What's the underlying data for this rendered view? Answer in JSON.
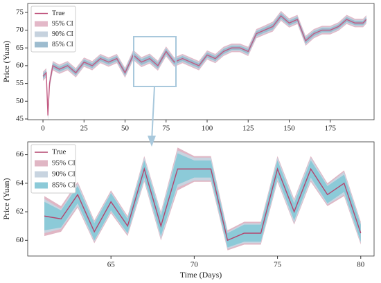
{
  "chart_data": [
    {
      "type": "band-line",
      "ylabel": "Price (Yuan)",
      "x": [
        0,
        2,
        3,
        4,
        6,
        10,
        15,
        20,
        25,
        30,
        35,
        40,
        45,
        50,
        55,
        60,
        65,
        70,
        75,
        80,
        85,
        90,
        95,
        100,
        105,
        110,
        115,
        120,
        125,
        130,
        135,
        140,
        145,
        150,
        155,
        160,
        165,
        170,
        175,
        180,
        185,
        190,
        195,
        197
      ],
      "series": [
        {
          "name": "True",
          "color": "#c25a82",
          "values": [
            57,
            58,
            46,
            55,
            60,
            59,
            60,
            58,
            61,
            60,
            62,
            61,
            62,
            58,
            63,
            61,
            62,
            60,
            64,
            61,
            62,
            61,
            60,
            63,
            62,
            64,
            65,
            65,
            64,
            69,
            70,
            71,
            74,
            72,
            73,
            67,
            69,
            70,
            70,
            71,
            73,
            72,
            72,
            73
          ]
        },
        {
          "name": "95% CI",
          "color": "#e3b8c8",
          "error": [
            1.3,
            1.3,
            1.5,
            1.5,
            1.3,
            1.3,
            1.3,
            1.3,
            1.3,
            1.3,
            1.3,
            1.3,
            1.3,
            1.4,
            1.4,
            1.4,
            1.4,
            1.4,
            1.4,
            1.3,
            1.3,
            1.3,
            1.3,
            1.3,
            1.3,
            1.3,
            1.2,
            1.2,
            1.3,
            1.3,
            1.3,
            1.4,
            1.4,
            1.3,
            1.3,
            1.4,
            1.3,
            1.2,
            1.2,
            1.2,
            1.3,
            1.2,
            1.2,
            1.2
          ]
        },
        {
          "name": "90% CI",
          "color": "#c6d2de",
          "error": [
            1.0,
            1.0,
            1.2,
            1.2,
            1.0,
            1.0,
            1.0,
            1.0,
            1.0,
            1.0,
            1.0,
            1.0,
            1.0,
            1.1,
            1.1,
            1.1,
            1.1,
            1.1,
            1.1,
            1.0,
            1.0,
            1.0,
            1.0,
            1.0,
            1.0,
            1.0,
            0.9,
            0.9,
            1.0,
            1.0,
            1.0,
            1.1,
            1.1,
            1.0,
            1.0,
            1.1,
            1.0,
            0.9,
            0.9,
            0.9,
            1.0,
            0.9,
            0.9,
            0.9
          ]
        },
        {
          "name": "85% CI",
          "color": "#9dbccf",
          "error": [
            0.7,
            0.7,
            0.9,
            0.9,
            0.7,
            0.7,
            0.7,
            0.7,
            0.7,
            0.7,
            0.7,
            0.7,
            0.7,
            0.8,
            0.8,
            0.8,
            0.8,
            0.8,
            0.8,
            0.7,
            0.7,
            0.7,
            0.7,
            0.7,
            0.7,
            0.7,
            0.6,
            0.6,
            0.7,
            0.7,
            0.7,
            0.8,
            0.8,
            0.7,
            0.7,
            0.8,
            0.7,
            0.6,
            0.6,
            0.6,
            0.7,
            0.6,
            0.6,
            0.6
          ]
        }
      ],
      "xlim": [
        -9.3,
        201.7
      ],
      "xticks": [
        0,
        25,
        50,
        75,
        100,
        125,
        150,
        175
      ],
      "ylim": [
        44.8,
        77.5
      ],
      "yticks": [
        45,
        50,
        55,
        60,
        65,
        70,
        75
      ],
      "legend": "upper left"
    },
    {
      "type": "band-line",
      "ylabel": "Price (Yuan)",
      "xlabel": "Time (Days)",
      "x": [
        61,
        62,
        63,
        64,
        65,
        66,
        67,
        68,
        69,
        70,
        71,
        72,
        73,
        74,
        75,
        76,
        77,
        78,
        79,
        80
      ],
      "series": [
        {
          "name": "True",
          "color": "#b4456e",
          "values": [
            61.7,
            61.5,
            63.2,
            60.6,
            62.7,
            61.0,
            65.0,
            61.0,
            65.0,
            65.0,
            65.0,
            60.0,
            60.5,
            60.5,
            65.0,
            62.0,
            65.0,
            63.2,
            64.0,
            60.5
          ]
        },
        {
          "name": "95% CI",
          "color": "#e0b6c4",
          "error": [
            1.4,
            0.9,
            0.9,
            0.8,
            0.8,
            0.7,
            0.9,
            1.0,
            1.5,
            0.9,
            0.9,
            0.7,
            0.8,
            0.8,
            0.9,
            0.9,
            0.9,
            0.8,
            0.9,
            0.8
          ]
        },
        {
          "name": "90% CI",
          "color": "#c8d4e0",
          "error": [
            1.2,
            0.7,
            0.8,
            0.7,
            0.7,
            0.6,
            0.8,
            0.9,
            1.3,
            0.8,
            0.8,
            0.6,
            0.7,
            0.7,
            0.8,
            0.8,
            0.8,
            0.7,
            0.8,
            0.7
          ]
        },
        {
          "name": "85% CI",
          "color": "#8ccad8",
          "error": [
            1.0,
            0.6,
            0.6,
            0.6,
            0.6,
            0.5,
            0.6,
            0.7,
            1.1,
            0.6,
            0.6,
            0.5,
            0.6,
            0.6,
            0.6,
            0.6,
            0.6,
            0.6,
            0.6,
            0.6
          ]
        }
      ],
      "xlim": [
        60.0,
        80.8
      ],
      "xticks": [
        65,
        70,
        75,
        80
      ],
      "ylim": [
        58.9,
        66.9
      ],
      "yticks": [
        60,
        62,
        64,
        66
      ],
      "legend": "upper left"
    }
  ]
}
